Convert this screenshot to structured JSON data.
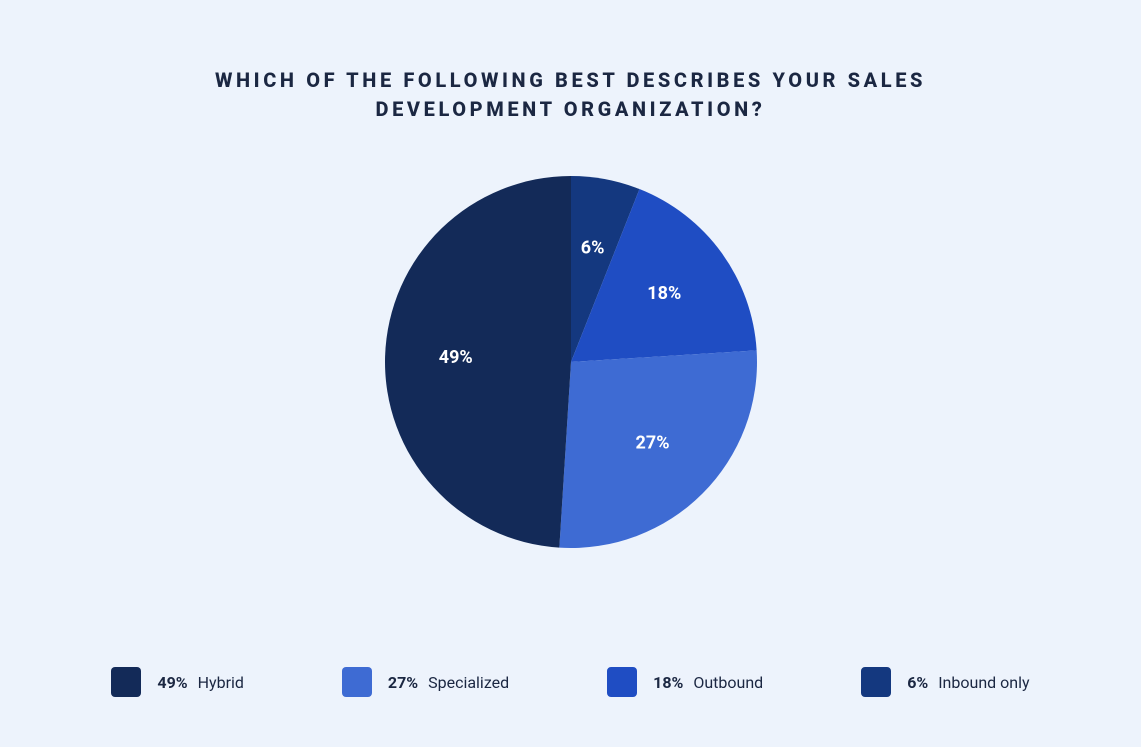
{
  "background_color": "#edf3fc",
  "title": {
    "text": "WHICH OF THE FOLLOWING BEST DESCRIBES YOUR SALES DEVELOPMENT ORGANIZATION?",
    "color": "#1b2742",
    "fontsize": 20,
    "fontweight": 800,
    "letter_spacing_em": 0.18
  },
  "chart": {
    "type": "pie",
    "radius": 186,
    "start_angle_deg_from_top": 0,
    "direction": "clockwise",
    "label_color": "#ffffff",
    "label_fontsize": 18,
    "label_fontweight": 700,
    "label_radius_ratio": 0.62,
    "slices": [
      {
        "label": "Inbound only",
        "value": 6,
        "color": "#14387f",
        "display": "6%"
      },
      {
        "label": "Outbound",
        "value": 18,
        "color": "#1f4dc3",
        "display": "18%"
      },
      {
        "label": "Specialized",
        "value": 27,
        "color": "#3e6bd3",
        "display": "27%"
      },
      {
        "label": "Hybrid",
        "value": 49,
        "color": "#132a58",
        "display": "49%"
      }
    ]
  },
  "legend": {
    "order_indices": [
      3,
      2,
      1,
      0
    ],
    "text_color": "#1b2742",
    "fontsize": 16,
    "swatch_size": 30,
    "swatch_radius": 4
  }
}
